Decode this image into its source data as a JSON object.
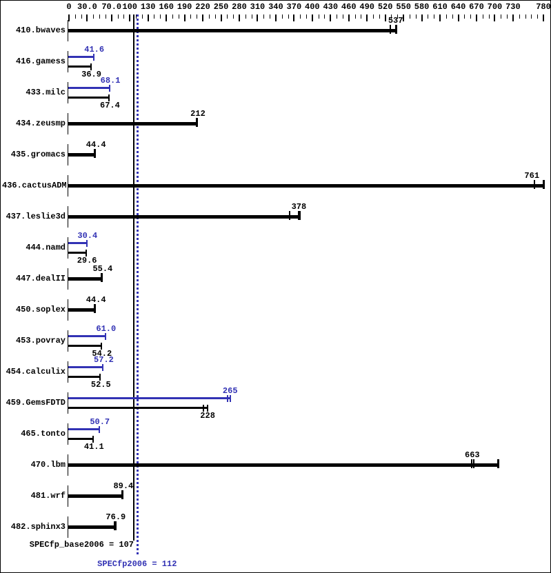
{
  "chart_data": {
    "type": "bar",
    "orientation": "horizontal",
    "title": "",
    "colors": {
      "base_series": "#000000",
      "peak_series": "#3232b4",
      "background": "#ffffff",
      "border": "#000000"
    },
    "x_axis": {
      "min": 0,
      "max": 780,
      "minor_tick_step": 10,
      "major_tick_values": [
        0,
        30,
        70,
        100,
        130,
        160,
        190,
        220,
        250,
        280,
        310,
        340,
        370,
        400,
        430,
        460,
        490,
        520,
        550,
        580,
        610,
        640,
        670,
        700,
        730,
        780
      ],
      "major_tick_labels": [
        "0",
        "30.0",
        "70.0",
        "100",
        "130",
        "160",
        "190",
        "220",
        "250",
        "280",
        "310",
        "340",
        "370",
        "400",
        "430",
        "460",
        "490",
        "520",
        "550",
        "580",
        "610",
        "640",
        "670",
        "700",
        "730",
        "780"
      ]
    },
    "benchmarks": [
      {
        "name": "410.bwaves",
        "base": {
          "label": "537",
          "value": 537,
          "bar_end": 540,
          "run_ticks": [
            528
          ]
        }
      },
      {
        "name": "416.gamess",
        "peak": {
          "label": "41.6",
          "value": 41.6
        },
        "base": {
          "label": "36.9",
          "value": 36.9
        }
      },
      {
        "name": "433.milc",
        "peak": {
          "label": "68.1",
          "value": 68.1
        },
        "base": {
          "label": "67.4",
          "value": 67.4
        }
      },
      {
        "name": "434.zeusmp",
        "base": {
          "label": "212",
          "value": 212
        }
      },
      {
        "name": "435.gromacs",
        "base": {
          "label": "44.4",
          "value": 44.4
        }
      },
      {
        "name": "436.cactusADM",
        "base": {
          "label": "761",
          "value": 761,
          "bar_end": 782,
          "run_ticks": [
            765
          ]
        }
      },
      {
        "name": "437.leslie3d",
        "base": {
          "label": "378",
          "value": 378,
          "bar_end": 381,
          "run_ticks": [
            363,
            377
          ]
        }
      },
      {
        "name": "444.namd",
        "peak": {
          "label": "30.4",
          "value": 30.4
        },
        "base": {
          "label": "29.6",
          "value": 29.6
        }
      },
      {
        "name": "447.dealII",
        "base": {
          "label": "55.4",
          "value": 55.4
        }
      },
      {
        "name": "450.soplex",
        "base": {
          "label": "44.4",
          "value": 44.4
        }
      },
      {
        "name": "453.povray",
        "peak": {
          "label": "61.0",
          "value": 61.0
        },
        "base": {
          "label": "54.2",
          "value": 54.2
        }
      },
      {
        "name": "454.calculix",
        "peak": {
          "label": "57.2",
          "value": 57.2
        },
        "base": {
          "label": "52.5",
          "value": 52.5
        }
      },
      {
        "name": "459.GemsFDTD",
        "peak": {
          "label": "265",
          "value": 265,
          "bar_end": 266,
          "run_ticks": [
            261
          ]
        },
        "base": {
          "label": "228",
          "value": 228,
          "bar_end": 229,
          "run_ticks": [
            221
          ]
        }
      },
      {
        "name": "465.tonto",
        "peak": {
          "label": "50.7",
          "value": 50.7
        },
        "base": {
          "label": "41.1",
          "value": 41.1
        }
      },
      {
        "name": "470.lbm",
        "base": {
          "label": "663",
          "value": 663,
          "bar_end": 707,
          "run_ticks": [
            662,
            666
          ]
        }
      },
      {
        "name": "481.wrf",
        "base": {
          "label": "89.4",
          "value": 89.4
        }
      },
      {
        "name": "482.sphinx3",
        "base": {
          "label": "76.9",
          "value": 76.9,
          "bar_end": 78,
          "run_ticks": [
            75
          ]
        }
      }
    ],
    "summary": {
      "base": {
        "text": "SPECfp_base2006 = 107",
        "value": 107
      },
      "peak": {
        "text": "SPECfp2006 = 112",
        "value": 112
      }
    }
  }
}
